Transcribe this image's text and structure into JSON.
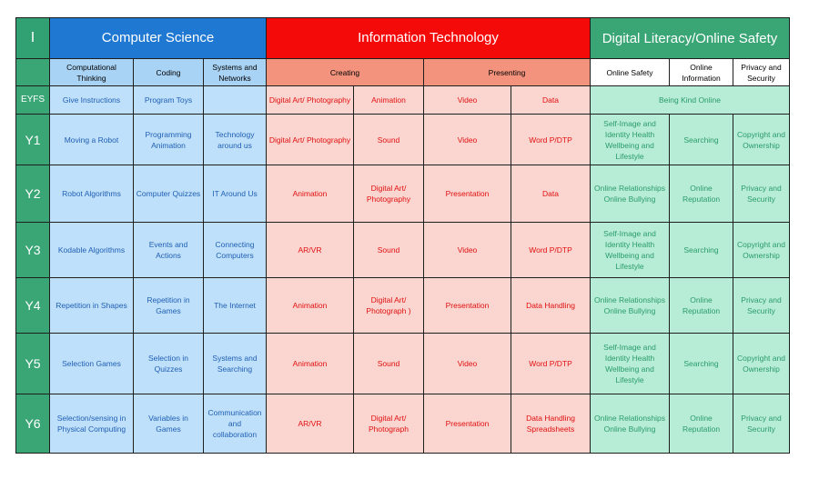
{
  "corner_label": "I",
  "groups": {
    "computer_science": "Computer Science",
    "information_technology": "Information Technology",
    "digital_literacy": "Digital Literacy/Online Safety"
  },
  "subheaders": {
    "computational_thinking": "Computational Thinking",
    "coding": "Coding",
    "systems_networks": "Systems and Networks",
    "creating": "Creating",
    "presenting": "Presenting",
    "online_safety": "Online Safety",
    "online_information": "Online Information",
    "privacy_security": "Privacy and Security"
  },
  "colors": {
    "computer_science": "#1f78d1",
    "information_technology": "#f50a0a",
    "digital_literacy": "#3aa676"
  },
  "eyfs": {
    "year": "EYFS",
    "cells": [
      "Give Instructions",
      "Program Toys",
      "",
      "Digital Art/ Photography",
      "Animation",
      "Video",
      "Data"
    ],
    "dl_merged": "Being Kind Online"
  },
  "rows": [
    {
      "year": "Y1",
      "cells": [
        "Moving a Robot",
        "Programming Animation",
        "Technology around us",
        "Digital Art/ Photography",
        "Sound",
        "Video",
        "Word P/DTP",
        "Self-Image and Identity Health Wellbeing and Lifestyle",
        "Searching",
        "Copyright and Ownership"
      ]
    },
    {
      "year": "Y2",
      "cells": [
        "Robot Algorithms",
        "Computer Quizzes",
        "IT Around Us",
        "Animation",
        "Digital Art/ Photography",
        "Presentation",
        "Data",
        "Online Relationships Online Bullying",
        "Online Reputation",
        "Privacy and Security"
      ]
    },
    {
      "year": "Y3",
      "cells": [
        "Kodable Algorithms",
        "Events and Actions",
        "Connecting Computers",
        "AR/VR",
        "Sound",
        "Video",
        "Word P/DTP",
        "Self-Image and Identity Health Wellbeing and Lifestyle",
        "Searching",
        "Copyright and Ownership"
      ]
    },
    {
      "year": "Y4",
      "cells": [
        "Repetition in Shapes",
        "Repetition in Games",
        "The Internet",
        "Animation",
        "Digital Art/ Photograph )",
        "Presentation",
        "Data Handling",
        "Online Relationships Online Bullying",
        "Online Reputation",
        "Privacy and Security"
      ]
    },
    {
      "year": "Y5",
      "cells": [
        "Selection Games",
        "Selection in Quizzes",
        "Systems and Searching",
        "Animation",
        "Sound",
        "Video",
        "Word P/DTP",
        "Self-Image and Identity Health Wellbeing and Lifestyle",
        "Searching",
        "Copyright and Ownership"
      ]
    },
    {
      "year": "Y6",
      "cells": [
        "Selection/sensing in Physical Computing",
        "Variables in Games",
        "Communication and collaboration",
        "AR/VR",
        "Digital Art/ Photograph",
        "Presentation",
        "Data Handling Spreadsheets",
        "Online Relationships Online Bullying",
        "Online Reputation",
        "Privacy and Security"
      ]
    }
  ]
}
